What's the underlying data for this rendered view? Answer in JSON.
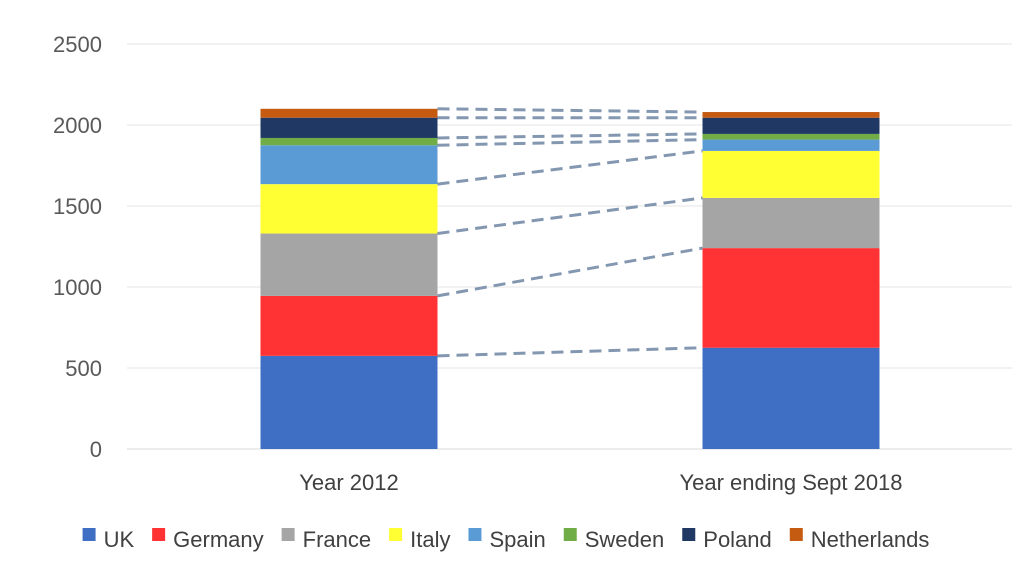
{
  "chart_data": {
    "type": "bar",
    "stacked": true,
    "categories": [
      "Year 2012",
      "Year ending Sept 2018"
    ],
    "series": [
      {
        "name": "UK",
        "values": [
          575,
          625
        ],
        "color": "#3F6FC4"
      },
      {
        "name": "Germany",
        "values": [
          370,
          615
        ],
        "color": "#FF3333"
      },
      {
        "name": "France",
        "values": [
          385,
          310
        ],
        "color": "#A5A5A5"
      },
      {
        "name": "Italy",
        "values": [
          305,
          290
        ],
        "color": "#FFFF33"
      },
      {
        "name": "Spain",
        "values": [
          240,
          70
        ],
        "color": "#5B9BD5"
      },
      {
        "name": "Sweden",
        "values": [
          45,
          35
        ],
        "color": "#70AD47"
      },
      {
        "name": "Poland",
        "values": [
          125,
          100
        ],
        "color": "#1F3864"
      },
      {
        "name": "Netherlands",
        "values": [
          55,
          35
        ],
        "color": "#C55A11"
      }
    ],
    "y_ticks": [
      "0",
      "500",
      "1000",
      "1500",
      "2000",
      "2500"
    ],
    "ylim": [
      0,
      2500
    ],
    "grid": true,
    "legend_position": "bottom",
    "connector_lines": "dashed",
    "connector_color": "#8497B0"
  }
}
